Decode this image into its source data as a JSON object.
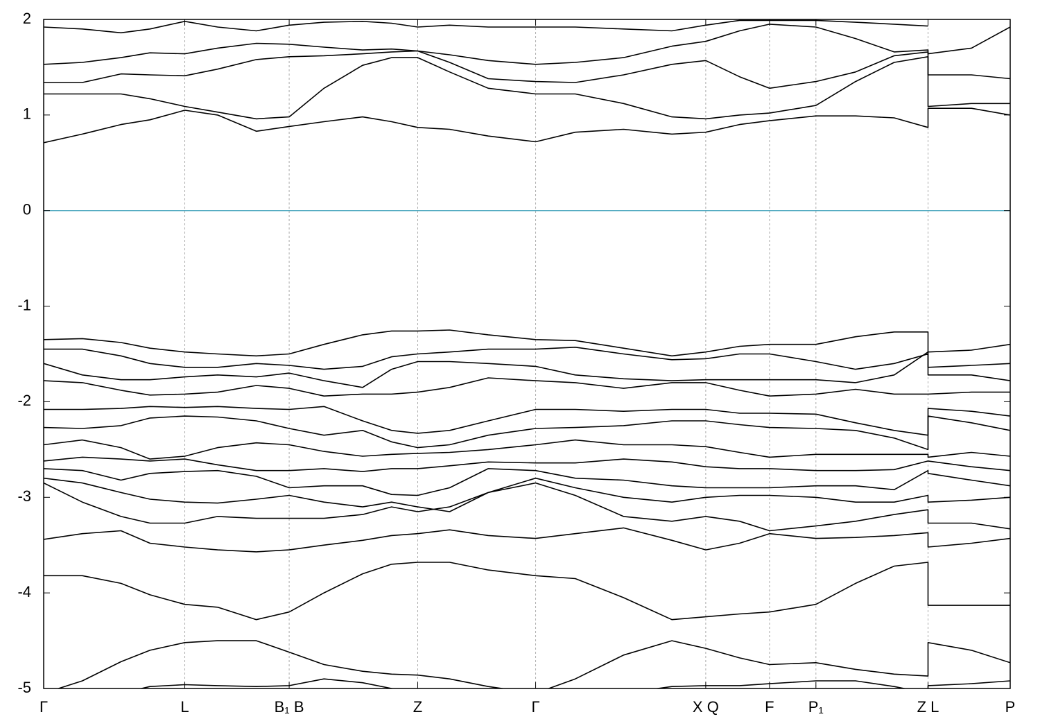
{
  "chart_data": {
    "type": "line",
    "color": "#000000",
    "x": [
      0,
      0.04,
      0.08,
      0.11,
      0.146,
      0.18,
      0.22,
      0.254,
      0.29,
      0.33,
      0.36,
      0.387,
      0.42,
      0.46,
      0.509,
      0.55,
      0.6,
      0.65,
      0.685,
      0.72,
      0.751,
      0.799,
      0.84,
      0.88,
      0.915,
      0.915,
      0.96,
      1
    ],
    "xlim": [
      0,
      1
    ],
    "xticks": [
      {
        "value": 0,
        "label": "Γ"
      },
      {
        "value": 0.146,
        "label": "L"
      },
      {
        "value": 0.254,
        "label": "B₁ B"
      },
      {
        "value": 0.387,
        "label": "Z"
      },
      {
        "value": 0.509,
        "label": "Γ"
      },
      {
        "value": 0.685,
        "label": "X Q"
      },
      {
        "value": 0.751,
        "label": "F"
      },
      {
        "value": 0.799,
        "label": "P₁"
      },
      {
        "value": 0.915,
        "label": "Z L"
      },
      {
        "value": 1,
        "label": "P"
      }
    ],
    "ylim": [
      -5,
      2
    ],
    "yticks": [
      2,
      1,
      0,
      -1,
      -2,
      -3,
      -4,
      -5
    ],
    "grid": true,
    "hlines": [
      {
        "value": 0,
        "color": "#4fa8c0"
      }
    ],
    "series": [
      {
        "values": [
          0.71,
          0.8,
          0.9,
          0.95,
          1.05,
          1.0,
          0.83,
          0.88,
          0.93,
          0.98,
          0.93,
          0.87,
          0.85,
          0.78,
          0.72,
          0.82,
          0.85,
          0.8,
          0.82,
          0.9,
          0.94,
          0.99,
          0.99,
          0.97,
          0.87,
          1.07,
          1.07,
          1.0
        ]
      },
      {
        "values": [
          1.22,
          1.22,
          1.22,
          1.17,
          1.09,
          1.03,
          0.96,
          0.98,
          1.28,
          1.52,
          1.6,
          1.6,
          1.45,
          1.28,
          1.22,
          1.22,
          1.12,
          0.98,
          0.96,
          1.0,
          1.02,
          1.1,
          1.35,
          1.55,
          1.61,
          1.09,
          1.12,
          1.12
        ]
      },
      {
        "values": [
          1.34,
          1.34,
          1.43,
          1.42,
          1.41,
          1.48,
          1.58,
          1.61,
          1.62,
          1.64,
          1.66,
          1.67,
          1.55,
          1.38,
          1.35,
          1.34,
          1.42,
          1.53,
          1.57,
          1.4,
          1.28,
          1.35,
          1.45,
          1.62,
          1.66,
          1.42,
          1.42,
          1.38
        ]
      },
      {
        "values": [
          1.53,
          1.55,
          1.6,
          1.65,
          1.64,
          1.7,
          1.75,
          1.74,
          1.71,
          1.68,
          1.69,
          1.67,
          1.63,
          1.57,
          1.53,
          1.55,
          1.6,
          1.72,
          1.77,
          1.88,
          1.95,
          1.92,
          1.8,
          1.66,
          1.68,
          1.64,
          1.7,
          1.92
        ]
      },
      {
        "values": [
          1.92,
          1.9,
          1.86,
          1.9,
          1.98,
          1.92,
          1.88,
          1.94,
          1.97,
          1.98,
          1.96,
          1.92,
          1.94,
          1.92,
          1.92,
          1.92,
          1.9,
          1.88,
          1.94,
          1.99,
          1.99,
          1.99,
          1.97,
          1.95,
          1.93,
          null,
          null,
          null
        ]
      },
      {
        "values": [
          -1.35,
          -1.34,
          -1.38,
          -1.44,
          -1.48,
          -1.5,
          -1.52,
          -1.5,
          -1.4,
          -1.3,
          -1.26,
          -1.26,
          -1.25,
          -1.3,
          -1.35,
          -1.36,
          -1.44,
          -1.52,
          -1.48,
          -1.42,
          -1.4,
          -1.4,
          -1.32,
          -1.27,
          -1.27,
          -1.48,
          -1.46,
          -1.4
        ]
      },
      {
        "values": [
          -1.45,
          -1.45,
          -1.52,
          -1.6,
          -1.64,
          -1.64,
          -1.6,
          -1.62,
          -1.66,
          -1.63,
          -1.53,
          -1.5,
          -1.48,
          -1.45,
          -1.45,
          -1.43,
          -1.5,
          -1.56,
          -1.55,
          -1.5,
          -1.5,
          -1.58,
          -1.66,
          -1.6,
          -1.5,
          -1.64,
          -1.62,
          -1.6
        ]
      },
      {
        "values": [
          -1.6,
          -1.72,
          -1.77,
          -1.77,
          -1.74,
          -1.72,
          -1.74,
          -1.7,
          -1.78,
          -1.85,
          -1.66,
          -1.58,
          -1.58,
          -1.6,
          -1.63,
          -1.72,
          -1.76,
          -1.78,
          -1.77,
          -1.77,
          -1.77,
          -1.77,
          -1.8,
          -1.72,
          -1.48,
          -1.72,
          -1.72,
          -1.78
        ]
      },
      {
        "values": [
          -1.78,
          -1.8,
          -1.88,
          -1.93,
          -1.92,
          -1.9,
          -1.83,
          -1.86,
          -1.94,
          -1.92,
          -1.92,
          -1.9,
          -1.85,
          -1.75,
          -1.78,
          -1.8,
          -1.86,
          -1.8,
          -1.8,
          -1.88,
          -1.94,
          -1.92,
          -1.87,
          -1.92,
          -1.92,
          -1.92,
          -1.9,
          -1.9
        ]
      },
      {
        "values": [
          -2.08,
          -2.08,
          -2.07,
          -2.05,
          -2.06,
          -2.05,
          -2.07,
          -2.08,
          -2.05,
          -2.2,
          -2.3,
          -2.33,
          -2.3,
          -2.2,
          -2.08,
          -2.08,
          -2.1,
          -2.08,
          -2.08,
          -2.12,
          -2.12,
          -2.13,
          -2.22,
          -2.3,
          -2.35,
          -2.07,
          -2.1,
          -2.15
        ]
      },
      {
        "values": [
          -2.27,
          -2.28,
          -2.25,
          -2.17,
          -2.15,
          -2.16,
          -2.2,
          -2.28,
          -2.35,
          -2.3,
          -2.42,
          -2.48,
          -2.45,
          -2.35,
          -2.28,
          -2.27,
          -2.25,
          -2.2,
          -2.2,
          -2.24,
          -2.27,
          -2.28,
          -2.3,
          -2.38,
          -2.5,
          -2.15,
          -2.22,
          -2.3
        ]
      },
      {
        "values": [
          -2.45,
          -2.4,
          -2.48,
          -2.6,
          -2.57,
          -2.48,
          -2.43,
          -2.45,
          -2.52,
          -2.57,
          -2.55,
          -2.54,
          -2.53,
          -2.5,
          -2.45,
          -2.4,
          -2.45,
          -2.45,
          -2.47,
          -2.53,
          -2.58,
          -2.55,
          -2.55,
          -2.55,
          -2.55,
          -2.58,
          -2.53,
          -2.57
        ]
      },
      {
        "values": [
          -2.62,
          -2.58,
          -2.6,
          -2.62,
          -2.6,
          -2.66,
          -2.72,
          -2.72,
          -2.7,
          -2.73,
          -2.7,
          -2.7,
          -2.67,
          -2.63,
          -2.64,
          -2.64,
          -2.6,
          -2.63,
          -2.68,
          -2.7,
          -2.7,
          -2.72,
          -2.72,
          -2.71,
          -2.62,
          -2.62,
          -2.68,
          -2.72
        ]
      },
      {
        "values": [
          -2.7,
          -2.72,
          -2.82,
          -2.75,
          -2.73,
          -2.72,
          -2.78,
          -2.9,
          -2.88,
          -2.88,
          -2.97,
          -2.98,
          -2.9,
          -2.7,
          -2.72,
          -2.8,
          -2.82,
          -2.88,
          -2.9,
          -2.9,
          -2.9,
          -2.88,
          -2.88,
          -2.92,
          -2.72,
          -2.75,
          -2.82,
          -2.88
        ]
      },
      {
        "values": [
          -2.8,
          -2.85,
          -2.95,
          -3.02,
          -3.05,
          -3.06,
          -3.02,
          -2.98,
          -3.05,
          -3.1,
          -3.05,
          -3.1,
          -3.15,
          -2.95,
          -2.8,
          -2.9,
          -3.0,
          -3.05,
          -3.0,
          -2.98,
          -2.98,
          -3.0,
          -3.05,
          -3.05,
          -2.98,
          -3.05,
          -3.03,
          -3.0
        ]
      },
      {
        "values": [
          -2.85,
          -3.05,
          -3.2,
          -3.27,
          -3.27,
          -3.2,
          -3.22,
          -3.22,
          -3.22,
          -3.18,
          -3.1,
          -3.15,
          -3.1,
          -2.95,
          -2.85,
          -2.98,
          -3.2,
          -3.25,
          -3.2,
          -3.25,
          -3.35,
          -3.3,
          -3.25,
          -3.18,
          -3.13,
          -3.27,
          -3.27,
          -3.33
        ]
      },
      {
        "values": [
          -3.44,
          -3.38,
          -3.35,
          -3.48,
          -3.52,
          -3.55,
          -3.57,
          -3.55,
          -3.5,
          -3.45,
          -3.4,
          -3.38,
          -3.34,
          -3.4,
          -3.43,
          -3.38,
          -3.32,
          -3.45,
          -3.55,
          -3.48,
          -3.38,
          -3.43,
          -3.42,
          -3.4,
          -3.37,
          -3.52,
          -3.48,
          -3.43
        ]
      },
      {
        "values": [
          -3.82,
          -3.82,
          -3.9,
          -4.02,
          -4.12,
          -4.15,
          -4.28,
          -4.2,
          -4.0,
          -3.8,
          -3.7,
          -3.68,
          -3.68,
          -3.76,
          -3.82,
          -3.85,
          -4.05,
          -4.28,
          -4.25,
          -4.22,
          -4.2,
          -4.12,
          -3.9,
          -3.72,
          -3.68,
          -4.13,
          -4.13,
          -4.13
        ]
      },
      {
        "values": [
          -5.05,
          -4.92,
          -4.72,
          -4.6,
          -4.52,
          -4.5,
          -4.5,
          -4.62,
          -4.75,
          -4.82,
          -4.85,
          -4.86,
          -4.9,
          -4.98,
          -5.05,
          -4.9,
          -4.65,
          -4.5,
          -4.58,
          -4.68,
          -4.75,
          -4.73,
          -4.8,
          -4.85,
          -4.87,
          -4.52,
          -4.6,
          -4.73
        ]
      },
      {
        "values": [
          -5.1,
          -5.1,
          -5.05,
          -4.98,
          -4.96,
          -4.97,
          -4.98,
          -4.97,
          -4.9,
          -4.94,
          -5.0,
          -5.05,
          -5.1,
          -5.1,
          -5.1,
          -5.1,
          -5.05,
          -4.98,
          -4.97,
          -4.97,
          -4.95,
          -4.92,
          -4.92,
          -4.98,
          -5.05,
          -4.97,
          -4.95,
          -4.92
        ]
      }
    ]
  }
}
